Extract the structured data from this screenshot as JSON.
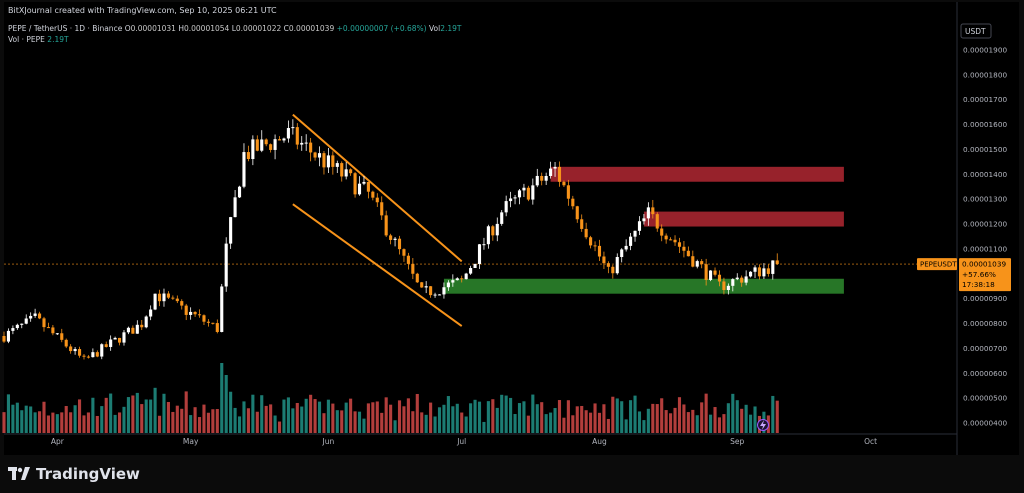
{
  "header": {
    "text": "BitXJournal created with TradingView.com, Sep 10, 2025 06:21 UTC"
  },
  "symbol": {
    "name": "PEPE / TetherUS · 1D · Binance",
    "o_label": "O",
    "o": "0.00001031",
    "h_label": "H",
    "h": "0.00001054",
    "l_label": "L",
    "l": "0.00001022",
    "c_label": "C",
    "c": "0.00001039",
    "change": "+0.00000007 (+0.68%)",
    "vol_label": "Vol",
    "vol": "2.19T"
  },
  "volume_legend": {
    "label": "Vol · PEPE",
    "value": "2.19T"
  },
  "price_axis": {
    "currency": "USDT",
    "ticks": [
      "0.00001900",
      "0.00001800",
      "0.00001700",
      "0.00001600",
      "0.00001500",
      "0.00001400",
      "0.00001300",
      "0.00001200",
      "0.00001100",
      "0.00000900",
      "0.00000800",
      "0.00000700",
      "0.00000600",
      "0.00000500",
      "0.00000400"
    ]
  },
  "price_tag": {
    "symbol": "PEPEUSDT",
    "price": "0.00001039",
    "change": "+57.66%",
    "countdown": "17:38:18"
  },
  "time_axis": {
    "labels": [
      "Apr",
      "May",
      "Jun",
      "Jul",
      "Aug",
      "Sep",
      "Oct"
    ]
  },
  "footer": {
    "brand": "TradingView"
  },
  "colors": {
    "up": "#26a69a",
    "down": "#ef5350",
    "candle_up": "#ffffff",
    "candle_down": "#f7931a",
    "channel": "#f7931a",
    "resistance": "#b22833",
    "support": "#2e8b2e"
  },
  "chart_data": {
    "type": "candlestick",
    "title": "PEPE / TetherUS · 1D · Binance",
    "x_range": [
      "2025-03-20",
      "2025-10-20"
    ],
    "y_range": [
      3.6e-06,
      1.98e-05
    ],
    "price_key_points": [
      {
        "date": "2025-03-20",
        "close": 7.5e-06
      },
      {
        "date": "2025-03-27",
        "close": 8.2e-06
      },
      {
        "date": "2025-04-07",
        "close": 6.5e-06
      },
      {
        "date": "2025-04-20",
        "close": 8e-06
      },
      {
        "date": "2025-04-23",
        "close": 9.2e-06
      },
      {
        "date": "2025-05-07",
        "close": 7.8e-06
      },
      {
        "date": "2025-05-09",
        "close": 1.1e-05
      },
      {
        "date": "2025-05-13",
        "close": 1.48e-05
      },
      {
        "date": "2025-05-23",
        "close": 1.56e-05
      },
      {
        "date": "2025-06-10",
        "close": 1.32e-05
      },
      {
        "date": "2025-06-22",
        "close": 9.2e-06
      },
      {
        "date": "2025-07-01",
        "close": 9.7e-06
      },
      {
        "date": "2025-07-10",
        "close": 1.25e-05
      },
      {
        "date": "2025-07-22",
        "close": 1.42e-05
      },
      {
        "date": "2025-08-03",
        "close": 1e-05
      },
      {
        "date": "2025-08-12",
        "close": 1.24e-05
      },
      {
        "date": "2025-08-28",
        "close": 9.5e-06
      },
      {
        "date": "2025-09-10",
        "close": 1.04e-05
      }
    ],
    "zones": [
      {
        "type": "resistance",
        "from": "2025-07-21",
        "to": "2025-09-25",
        "low": 1.37e-05,
        "high": 1.43e-05
      },
      {
        "type": "resistance",
        "from": "2025-08-11",
        "to": "2025-09-25",
        "low": 1.19e-05,
        "high": 1.25e-05
      },
      {
        "type": "support",
        "from": "2025-06-27",
        "to": "2025-09-25",
        "low": 9.2e-06,
        "high": 9.8e-06
      }
    ],
    "channel": [
      {
        "from": {
          "date": "2025-05-24",
          "price": 1.64e-05
        },
        "to": {
          "date": "2025-07-01",
          "price": 1.05e-05
        }
      },
      {
        "from": {
          "date": "2025-05-24",
          "price": 1.28e-05
        },
        "to": {
          "date": "2025-07-01",
          "price": 7.9e-06
        }
      }
    ],
    "last_price": 1.039e-05
  }
}
